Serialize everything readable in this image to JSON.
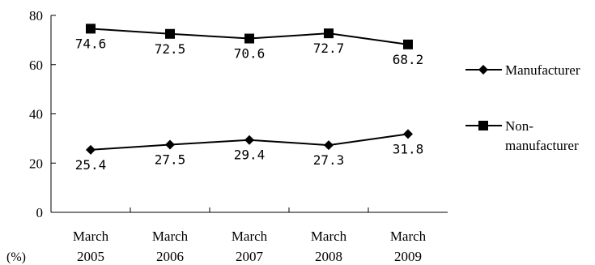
{
  "chart_data": {
    "type": "line",
    "categories": [
      "March\n2005",
      "March\n2006",
      "March\n2007",
      "March\n2008",
      "March\n2009"
    ],
    "y_unit": "(%)",
    "ylim": [
      0,
      80
    ],
    "yticks": [
      0,
      20,
      40,
      60,
      80
    ],
    "grid": false,
    "legend_position": "right",
    "series": [
      {
        "name": "Manufacturer",
        "marker": "diamond",
        "values": [
          25.4,
          27.5,
          29.4,
          27.3,
          31.8
        ],
        "labels": [
          "25.4",
          "27.5",
          "29.4",
          "27.3",
          "31.8"
        ],
        "color": "#000000"
      },
      {
        "name": "Non-\nmanufacturer",
        "marker": "square",
        "values": [
          74.6,
          72.5,
          70.6,
          72.7,
          68.2
        ],
        "labels": [
          "74.6",
          "72.5",
          "70.6",
          "72.7",
          "68.2"
        ],
        "color": "#000000"
      }
    ]
  }
}
